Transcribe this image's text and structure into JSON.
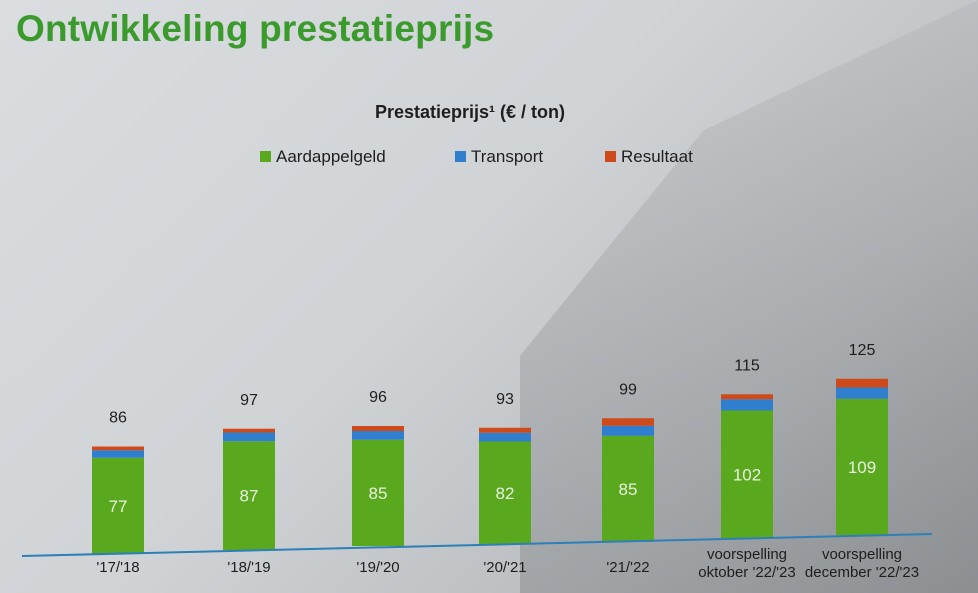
{
  "page_title": "Ontwikkeling prestatieprijs",
  "colors": {
    "title": "#3a9a2c",
    "aardappelgeld": "#5aa81e",
    "transport": "#2f7fce",
    "resultaat": "#cf4a1a",
    "axis": "#2d7fb8"
  },
  "chart_data": {
    "type": "bar",
    "stacked": true,
    "title": "Prestatieprijs¹ (€ / ton)",
    "categories": [
      [
        "'17/'18"
      ],
      [
        "'18/'19"
      ],
      [
        "'19/'20"
      ],
      [
        "'20/'21"
      ],
      [
        "'21/'22"
      ],
      [
        "voorspelling",
        "oktober '22/'23"
      ],
      [
        "voorspelling",
        "december '22/'23"
      ]
    ],
    "series": [
      {
        "name": "Aardappelgeld",
        "values": [
          77,
          87,
          85,
          82,
          85,
          102,
          109
        ]
      },
      {
        "name": "Transport",
        "values": [
          6,
          7,
          7,
          7,
          8,
          9,
          9
        ]
      },
      {
        "name": "Resultaat",
        "values": [
          3,
          3,
          4,
          4,
          6,
          4,
          7
        ]
      }
    ],
    "totals": [
      86,
      97,
      96,
      93,
      99,
      115,
      125
    ],
    "legend_position": "top-center",
    "grid": false
  }
}
